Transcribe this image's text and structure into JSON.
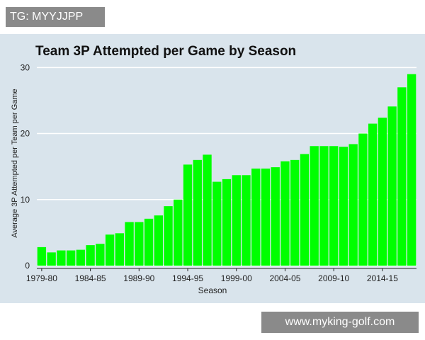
{
  "tag_label": "TG: MYYJJPP",
  "watermark": "www.myking-golf.com",
  "colors": {
    "bar": "#00ff00",
    "panel": "#d9e4ec",
    "grid": "#ffffff",
    "axis": "#222222"
  },
  "chart_data": {
    "type": "bar",
    "title": "Team 3P Attempted per Game by Season",
    "xlabel": "Season",
    "ylabel": "Average 3P Attempted per Team per Game",
    "ylim": [
      0,
      31
    ],
    "yticks": [
      0,
      10,
      20,
      30
    ],
    "xtick_labels": [
      "1979-80",
      "1984-85",
      "1989-90",
      "1994-95",
      "1999-00",
      "2004-05",
      "2009-10",
      "2014-15"
    ],
    "xtick_indices": [
      0,
      5,
      10,
      15,
      20,
      25,
      30,
      35
    ],
    "categories": [
      "1979-80",
      "1980-81",
      "1981-82",
      "1982-83",
      "1983-84",
      "1984-85",
      "1985-86",
      "1986-87",
      "1987-88",
      "1988-89",
      "1989-90",
      "1990-91",
      "1991-92",
      "1992-93",
      "1993-94",
      "1994-95",
      "1995-96",
      "1996-97",
      "1997-98",
      "1998-99",
      "1999-00",
      "2000-01",
      "2001-02",
      "2002-03",
      "2003-04",
      "2004-05",
      "2005-06",
      "2006-07",
      "2007-08",
      "2008-09",
      "2009-10",
      "2010-11",
      "2011-12",
      "2012-13",
      "2013-14",
      "2014-15",
      "2015-16",
      "2016-17",
      "2017-18"
    ],
    "values": [
      2.8,
      2.0,
      2.3,
      2.3,
      2.4,
      3.1,
      3.3,
      4.7,
      4.9,
      6.6,
      6.6,
      7.1,
      7.6,
      9.0,
      10.0,
      15.3,
      16.0,
      16.8,
      12.7,
      13.1,
      13.7,
      13.7,
      14.7,
      14.7,
      14.9,
      15.8,
      16.0,
      16.9,
      18.1,
      18.1,
      18.1,
      18.0,
      18.4,
      20.0,
      21.5,
      22.4,
      24.1,
      27.0,
      29.0
    ]
  }
}
